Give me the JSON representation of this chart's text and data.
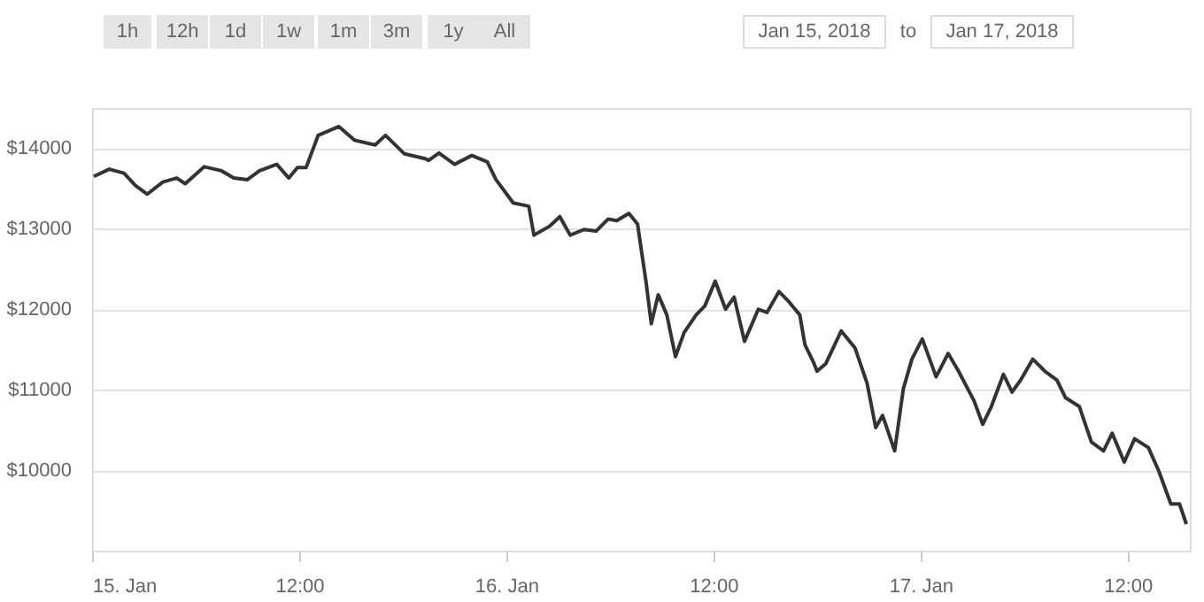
{
  "chart_data": {
    "type": "line",
    "x": [
      "2018-01-15T00:06",
      "2018-01-15T01:00",
      "2018-01-15T01:51",
      "2018-01-15T02:30",
      "2018-01-15T03:12",
      "2018-01-15T04:06",
      "2018-01-15T04:54",
      "2018-01-15T05:24",
      "2018-01-15T06:30",
      "2018-01-15T07:30",
      "2018-01-15T08:12",
      "2018-01-15T09:00",
      "2018-01-15T09:42",
      "2018-01-15T10:42",
      "2018-01-15T11:24",
      "2018-01-15T11:54",
      "2018-01-15T12:24",
      "2018-01-15T13:06",
      "2018-01-15T14:18",
      "2018-01-15T15:12",
      "2018-01-15T16:24",
      "2018-01-15T17:00",
      "2018-01-15T18:06",
      "2018-01-15T19:18",
      "2018-01-15T19:30",
      "2018-01-15T20:06",
      "2018-01-15T21:00",
      "2018-01-15T22:00",
      "2018-01-15T22:54",
      "2018-01-15T23:24",
      "2018-01-16T00:24",
      "2018-01-16T01:18",
      "2018-01-16T01:36",
      "2018-01-16T02:30",
      "2018-01-16T03:06",
      "2018-01-16T03:42",
      "2018-01-16T04:30",
      "2018-01-16T05:12",
      "2018-01-16T05:54",
      "2018-01-16T06:24",
      "2018-01-16T07:06",
      "2018-01-16T07:36",
      "2018-01-16T08:06",
      "2018-01-16T08:24",
      "2018-01-16T08:48",
      "2018-01-16T09:18",
      "2018-01-16T09:48",
      "2018-01-16T10:18",
      "2018-01-16T11:00",
      "2018-01-16T11:30",
      "2018-01-16T12:06",
      "2018-01-16T12:42",
      "2018-01-16T13:12",
      "2018-01-16T13:48",
      "2018-01-16T14:36",
      "2018-01-16T15:06",
      "2018-01-16T15:48",
      "2018-01-16T16:18",
      "2018-01-16T17:00",
      "2018-01-16T17:18",
      "2018-01-16T17:48",
      "2018-01-16T18:00",
      "2018-01-16T18:30",
      "2018-01-16T19:24",
      "2018-01-16T20:12",
      "2018-01-16T20:54",
      "2018-01-16T21:24",
      "2018-01-16T21:48",
      "2018-01-16T22:30",
      "2018-01-16T23:00",
      "2018-01-16T23:30",
      "2018-01-17T00:06",
      "2018-01-17T00:54",
      "2018-01-17T01:36",
      "2018-01-17T02:12",
      "2018-01-17T03:06",
      "2018-01-17T03:36",
      "2018-01-17T04:06",
      "2018-01-17T04:48",
      "2018-01-17T05:18",
      "2018-01-17T05:48",
      "2018-01-17T06:30",
      "2018-01-17T07:12",
      "2018-01-17T07:54",
      "2018-01-17T08:24",
      "2018-01-17T09:12",
      "2018-01-17T09:54",
      "2018-01-17T10:36",
      "2018-01-17T11:06",
      "2018-01-17T11:48",
      "2018-01-17T12:24",
      "2018-01-17T13:12",
      "2018-01-17T13:48",
      "2018-01-17T14:30",
      "2018-01-17T15:00",
      "2018-01-17T15:24"
    ],
    "series": [
      {
        "color": "#333333",
        "values": [
          13650,
          13740,
          13690,
          13540,
          13430,
          13580,
          13630,
          13560,
          13770,
          13720,
          13630,
          13610,
          13720,
          13800,
          13630,
          13760,
          13760,
          14160,
          14270,
          14100,
          14040,
          14160,
          13930,
          13870,
          13850,
          13940,
          13800,
          13910,
          13830,
          13610,
          13320,
          13280,
          12920,
          13030,
          13150,
          12920,
          12990,
          12970,
          13120,
          13100,
          13190,
          13060,
          12330,
          11820,
          12180,
          11930,
          11410,
          11710,
          11930,
          12040,
          12350,
          12000,
          12150,
          11600,
          12000,
          11960,
          12220,
          12110,
          11930,
          11560,
          11340,
          11230,
          11320,
          11730,
          11520,
          11080,
          10530,
          10680,
          10240,
          11010,
          11380,
          11630,
          11160,
          11450,
          11230,
          10860,
          10570,
          10790,
          11190,
          10970,
          11120,
          11380,
          11230,
          11120,
          10900,
          10790,
          10350,
          10240,
          10460,
          10100,
          10390,
          10280,
          9990,
          9580,
          9580,
          9330
        ]
      }
    ],
    "xlim": [
      "2018-01-15T00:00",
      "2018-01-17T15:36"
    ],
    "ylim": [
      9000,
      14500
    ],
    "xticks": [
      {
        "value": "2018-01-15",
        "label": "15. Jan"
      },
      {
        "value": "2018-01-15T12:00",
        "label": "12:00"
      },
      {
        "value": "2018-01-16",
        "label": "16. Jan"
      },
      {
        "value": "2018-01-16T12:00",
        "label": "12:00"
      },
      {
        "value": "2018-01-17",
        "label": "17. Jan"
      },
      {
        "value": "2018-01-17T12:00",
        "label": "12:00"
      }
    ],
    "yticks": [
      {
        "value": 10000,
        "label": "$10000"
      },
      {
        "value": 11000,
        "label": "$11000"
      },
      {
        "value": 12000,
        "label": "$12000"
      },
      {
        "value": 13000,
        "label": "$13000"
      },
      {
        "value": 14000,
        "label": "$14000"
      }
    ],
    "grid": "y",
    "marker": "none",
    "line_style": "solid",
    "annotations": [
      "1h",
      "12h",
      "1d",
      "1w",
      "1m",
      "3m",
      "1y",
      "All",
      "Jan 15, 2018",
      "to",
      "Jan 17, 2018"
    ]
  }
}
